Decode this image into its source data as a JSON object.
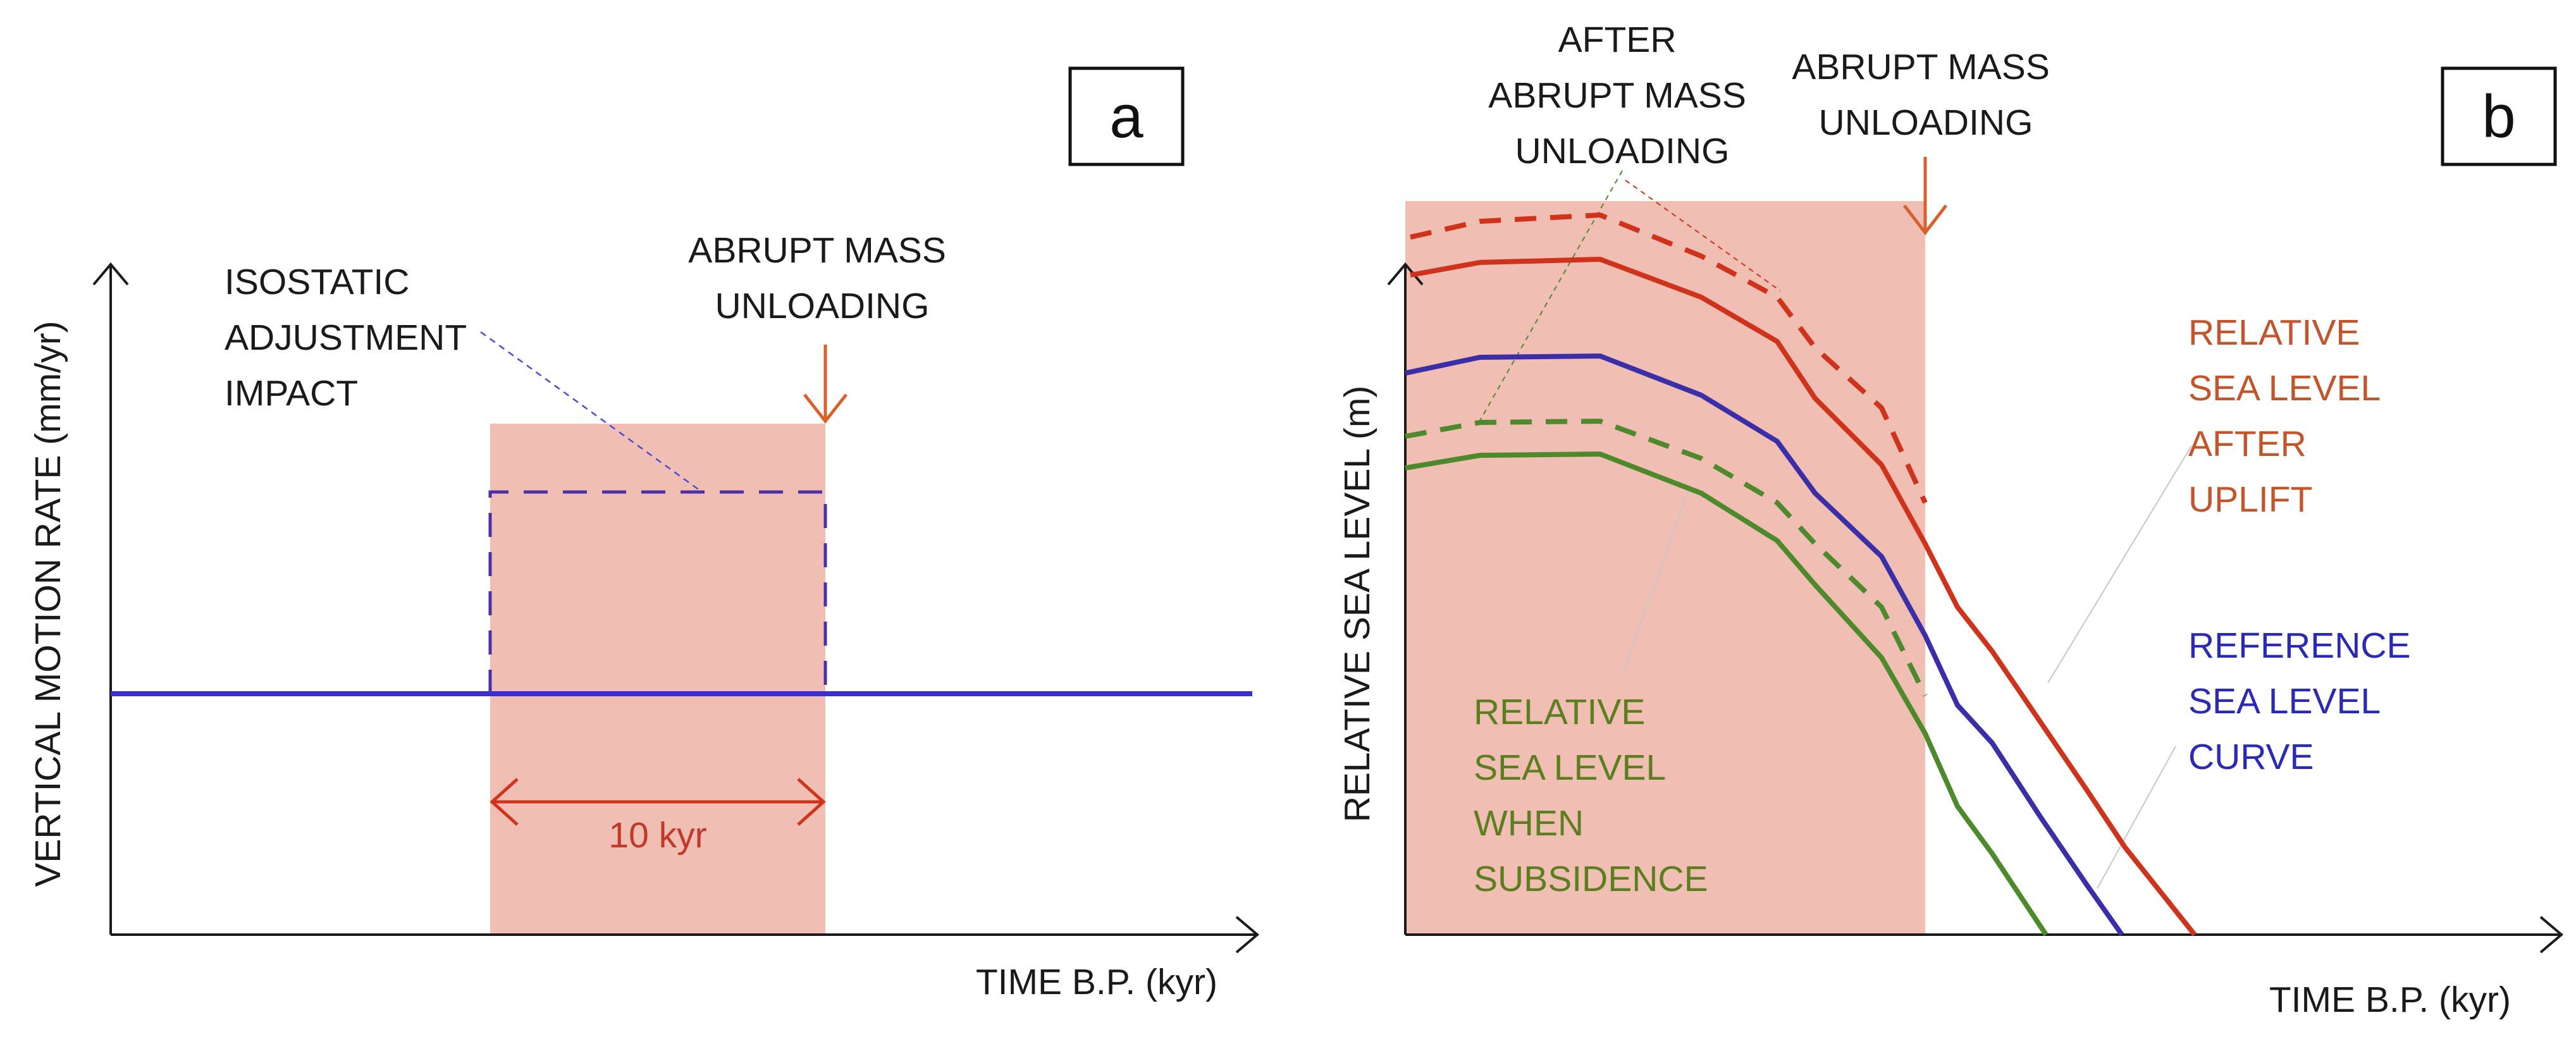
{
  "colors": {
    "shade": "#f0beb2",
    "axis": "#1a1a1a",
    "reference_blue": "#3a2fd6",
    "isostatic_purple": "#4a2fa8",
    "uplift_red": "#d0331c",
    "subsidence_green": "#4d8a2c",
    "arrow_orange": "#d9602a",
    "leader_gray": "#bdbdbd",
    "label_red": "#c0392b",
    "label_blue": "#2a2ab4",
    "label_green": "#5b7f1e"
  },
  "panel_a": {
    "letter": "a",
    "y_axis_label": "VERTICAL MOTION RATE (mm/yr)",
    "x_axis_label": "TIME B.P. (kyr)",
    "isostatic_label": [
      "ISOSTATIC",
      "ADJUSTMENT",
      "IMPACT"
    ],
    "unloading_label": [
      "ABRUPT MASS",
      "UNLOADING"
    ],
    "duration_label": "10 kyr"
  },
  "panel_b": {
    "letter": "b",
    "y_axis_label": "RELATIVE SEA LEVEL (m)",
    "x_axis_label": "TIME B.P. (kyr)",
    "after_unloading_label": [
      "AFTER",
      "ABRUPT MASS",
      "UNLOADING"
    ],
    "unloading_label": [
      "ABRUPT MASS",
      "UNLOADING"
    ],
    "uplift_label": [
      "RELATIVE",
      "SEA LEVEL",
      "AFTER",
      "UPLIFT"
    ],
    "reference_label": [
      "REFERENCE",
      "SEA LEVEL",
      "CURVE"
    ],
    "subsidence_label": [
      "RELATIVE",
      "SEA LEVEL",
      "WHEN",
      "SUBSIDENCE"
    ]
  }
}
